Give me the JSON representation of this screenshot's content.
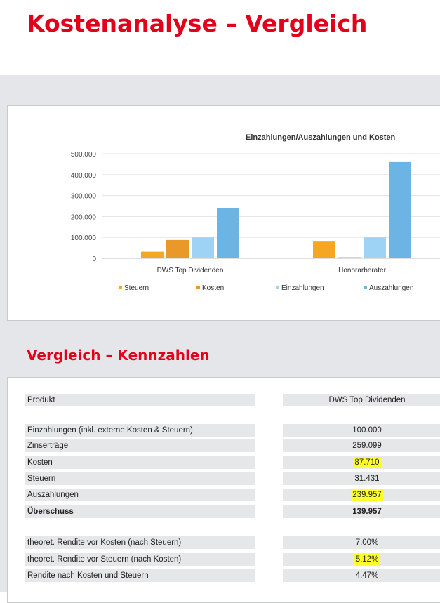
{
  "title": "Kostenanalyse – Vergleich",
  "section_title": "Vergleich – Kennzahlen",
  "colors": {
    "accent": "#e3001b",
    "steuern": "#f5a623",
    "kosten": "#e8992a",
    "einzahlungen": "#9fd3f5",
    "auszahlungen": "#6bb4e3",
    "highlight": "#ffff29"
  },
  "chart_data": {
    "type": "bar",
    "title": "Einzahlungen/Auszahlungen und Kosten",
    "categories": [
      "DWS Top Dividenden",
      "Honorarberater"
    ],
    "series": [
      {
        "name": "Steuern",
        "values": [
          31431,
          80000
        ]
      },
      {
        "name": "Kosten",
        "values": [
          87710,
          5000
        ]
      },
      {
        "name": "Einzahlungen",
        "values": [
          100000,
          100000
        ]
      },
      {
        "name": "Auszahlungen",
        "values": [
          239957,
          460000
        ]
      }
    ],
    "ylim": [
      0,
      500000
    ],
    "yticks": [
      "500.000",
      "400.000",
      "300.000",
      "200.000",
      "100.000",
      "0"
    ],
    "legend_position": "bottom",
    "grid": true
  },
  "table": {
    "header": {
      "label": "Produkt",
      "value": "DWS Top Dividenden"
    },
    "group1": [
      {
        "label": "Einzahlungen (inkl. externe Kosten & Steuern)",
        "value": "100.000"
      },
      {
        "label": "Zinserträge",
        "value": "259.099"
      },
      {
        "label": "Kosten",
        "value": "87.710"
      },
      {
        "label": "Steuern",
        "value": "31.431"
      },
      {
        "label": "Auszahlungen",
        "value": "239.957"
      },
      {
        "label": "Überschuss",
        "value": "139.957"
      }
    ],
    "group2": [
      {
        "label": "theoret. Rendite vor Kosten (nach Steuern)",
        "value": "7,00%"
      },
      {
        "label": "theoret. Rendite vor Steuern (nach Kosten)",
        "value": "5,12%"
      },
      {
        "label": "Rendite nach Kosten und Steuern",
        "value": "4,47%"
      }
    ]
  }
}
